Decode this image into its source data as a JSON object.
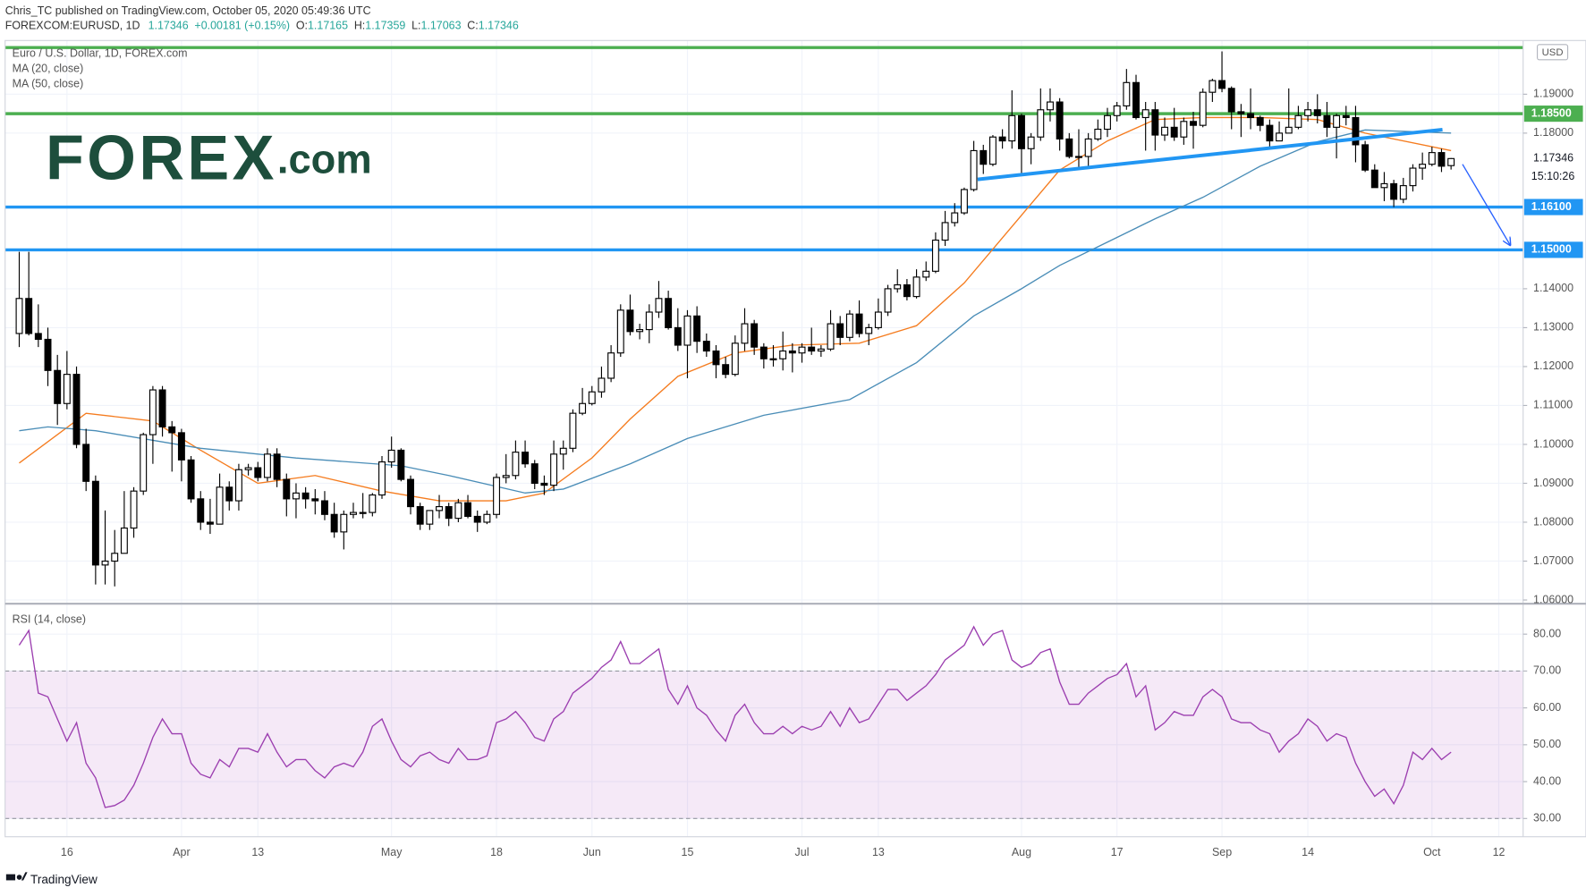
{
  "header": {
    "publisher": "Chris_TC published on TradingView.com, October 05, 2020 05:49:36 UTC",
    "symbol": "FOREXCOM:EURUSD, 1D",
    "last": "1.17346",
    "change": "+0.00181 (+0.15%)",
    "ohlc": [
      {
        "label": "O:",
        "value": "1.17165"
      },
      {
        "label": "H:",
        "value": "1.17359"
      },
      {
        "label": "L:",
        "value": "1.17063"
      },
      {
        "label": "C:",
        "value": "1.17346"
      }
    ]
  },
  "logo": {
    "brand": "FOREX",
    "suffix": ".com"
  },
  "footer": "TradingView",
  "chart_data": [
    {
      "type": "candlestick",
      "title": "Euro / U.S. Dollar, 1D, FOREX.com",
      "currency": "USD",
      "xlim": [
        -1.48,
        157.55
      ],
      "ylim": [
        1.0593,
        1.2038
      ],
      "xticks": [
        {
          "value": 5,
          "label": "16"
        },
        {
          "value": 17,
          "label": "Apr"
        },
        {
          "value": 25,
          "label": "13"
        },
        {
          "value": 39,
          "label": "May"
        },
        {
          "value": 50,
          "label": "18"
        },
        {
          "value": 60,
          "label": "Jun"
        },
        {
          "value": 70,
          "label": "15"
        },
        {
          "value": 82,
          "label": "Jul"
        },
        {
          "value": 90,
          "label": "13"
        },
        {
          "value": 105,
          "label": "Aug"
        },
        {
          "value": 115,
          "label": "17"
        },
        {
          "value": 126,
          "label": "Sep"
        },
        {
          "value": 135,
          "label": "14"
        },
        {
          "value": 148,
          "label": "Oct"
        },
        {
          "value": 155,
          "label": "12"
        }
      ],
      "yticks": [
        {
          "value": 1.19,
          "label": "1.19000"
        },
        {
          "value": 1.18,
          "label": "1.18000"
        },
        {
          "value": 1.14,
          "label": "1.14000"
        },
        {
          "value": 1.13,
          "label": "1.13000"
        },
        {
          "value": 1.12,
          "label": "1.12000"
        },
        {
          "value": 1.11,
          "label": "1.11000"
        },
        {
          "value": 1.1,
          "label": "1.10000"
        },
        {
          "value": 1.09,
          "label": "1.09000"
        },
        {
          "value": 1.08,
          "label": "1.08000"
        },
        {
          "value": 1.07,
          "label": "1.07000"
        },
        {
          "value": 1.06,
          "label": "1.06000"
        }
      ],
      "grid": true,
      "up_color": "#ffffff",
      "down_color": "#000000",
      "open": [
        1.1285,
        1.1375,
        1.1285,
        1.127,
        1.119,
        1.1105,
        1.118,
        1.1,
        1.0905,
        1.069,
        1.07,
        1.072,
        1.0785,
        1.088,
        1.1025,
        1.114,
        1.1045,
        1.103,
        1.096,
        1.086,
        1.08,
        1.0795,
        1.089,
        1.0855,
        1.0935,
        1.094,
        1.0915,
        1.0975,
        1.091,
        1.086,
        1.0875,
        1.086,
        1.0855,
        1.082,
        1.0775,
        1.082,
        1.0825,
        1.0825,
        1.087,
        1.0955,
        1.0985,
        1.091,
        1.084,
        1.0795,
        1.083,
        1.084,
        1.081,
        1.085,
        1.0815,
        1.08,
        1.082,
        1.0915,
        1.092,
        1.098,
        1.095,
        1.09,
        1.0895,
        1.0975,
        1.099,
        1.108,
        1.1105,
        1.1135,
        1.117,
        1.1235,
        1.1345,
        1.129,
        1.1295,
        1.134,
        1.1375,
        1.13,
        1.1255,
        1.133,
        1.1265,
        1.124,
        1.1205,
        1.118,
        1.126,
        1.131,
        1.125,
        1.122,
        1.122,
        1.124,
        1.1235,
        1.125,
        1.124,
        1.1245,
        1.131,
        1.1275,
        1.1335,
        1.1285,
        1.13,
        1.134,
        1.14,
        1.141,
        1.138,
        1.143,
        1.1445,
        1.1525,
        1.157,
        1.1595,
        1.1655,
        1.1755,
        1.172,
        1.179,
        1.178,
        1.1845,
        1.176,
        1.179,
        1.186,
        1.188,
        1.1785,
        1.174,
        1.174,
        1.1785,
        1.181,
        1.1845,
        1.187,
        1.193,
        1.184,
        1.186,
        1.1795,
        1.1815,
        1.179,
        1.183,
        1.182,
        1.1905,
        1.1935,
        1.1915,
        1.1855,
        1.185,
        1.184,
        1.182,
        1.178,
        1.18,
        1.1815,
        1.1845,
        1.186,
        1.1845,
        1.1815,
        1.1845,
        1.184,
        1.177,
        1.1705,
        1.166,
        1.167,
        1.163,
        1.1665,
        1.171,
        1.172,
        1.175,
        1.17165
      ],
      "high": [
        1.1495,
        1.1495,
        1.136,
        1.13,
        1.123,
        1.124,
        1.12,
        1.104,
        1.092,
        1.083,
        1.078,
        1.088,
        1.089,
        1.103,
        1.115,
        1.115,
        1.106,
        1.104,
        1.097,
        1.088,
        1.086,
        1.0925,
        1.0905,
        1.095,
        1.095,
        1.0955,
        1.099,
        1.099,
        1.0925,
        1.09,
        1.089,
        1.0885,
        1.088,
        1.085,
        1.083,
        1.085,
        1.0875,
        1.0875,
        1.097,
        1.102,
        1.099,
        1.092,
        1.085,
        1.083,
        1.087,
        1.085,
        1.086,
        1.087,
        1.083,
        1.083,
        1.0925,
        1.0975,
        1.101,
        1.101,
        1.096,
        1.092,
        1.101,
        1.101,
        1.109,
        1.1145,
        1.115,
        1.12,
        1.1255,
        1.136,
        1.1385,
        1.131,
        1.136,
        1.142,
        1.1395,
        1.135,
        1.1345,
        1.1355,
        1.1285,
        1.1255,
        1.1225,
        1.128,
        1.135,
        1.132,
        1.126,
        1.1255,
        1.129,
        1.126,
        1.126,
        1.13,
        1.1255,
        1.1345,
        1.133,
        1.1345,
        1.137,
        1.131,
        1.1375,
        1.141,
        1.145,
        1.1425,
        1.145,
        1.147,
        1.1545,
        1.16,
        1.162,
        1.166,
        1.178,
        1.177,
        1.1795,
        1.181,
        1.191,
        1.185,
        1.18,
        1.1915,
        1.1915,
        1.189,
        1.18,
        1.181,
        1.18,
        1.1835,
        1.1865,
        1.188,
        1.1965,
        1.195,
        1.188,
        1.188,
        1.184,
        1.1865,
        1.184,
        1.1855,
        1.1915,
        1.194,
        1.201,
        1.192,
        1.1875,
        1.1915,
        1.1845,
        1.1835,
        1.183,
        1.1915,
        1.187,
        1.188,
        1.19,
        1.188,
        1.185,
        1.187,
        1.187,
        1.178,
        1.172,
        1.17,
        1.168,
        1.1685,
        1.172,
        1.175,
        1.1765,
        1.176,
        1.17359
      ],
      "low": [
        1.125,
        1.128,
        1.125,
        1.115,
        1.105,
        1.109,
        1.099,
        1.088,
        1.064,
        1.064,
        1.0635,
        1.072,
        1.076,
        1.087,
        1.095,
        1.102,
        1.093,
        1.0905,
        1.085,
        1.078,
        1.077,
        1.0795,
        1.083,
        1.083,
        1.092,
        1.0905,
        1.0905,
        1.089,
        1.0815,
        1.081,
        1.0835,
        1.082,
        1.0805,
        1.076,
        1.073,
        1.081,
        1.081,
        1.0815,
        1.086,
        1.094,
        1.0905,
        1.082,
        1.078,
        1.078,
        1.081,
        1.079,
        1.08,
        1.081,
        1.0775,
        1.0795,
        1.081,
        1.09,
        1.091,
        1.094,
        1.0885,
        1.087,
        1.088,
        1.0935,
        1.098,
        1.1075,
        1.11,
        1.112,
        1.116,
        1.1225,
        1.128,
        1.127,
        1.126,
        1.1325,
        1.1295,
        1.124,
        1.117,
        1.1235,
        1.1225,
        1.117,
        1.117,
        1.1175,
        1.124,
        1.123,
        1.1195,
        1.12,
        1.119,
        1.1185,
        1.121,
        1.123,
        1.1225,
        1.124,
        1.1255,
        1.1265,
        1.1275,
        1.1255,
        1.1295,
        1.133,
        1.139,
        1.137,
        1.1375,
        1.142,
        1.144,
        1.151,
        1.156,
        1.159,
        1.165,
        1.1695,
        1.1715,
        1.176,
        1.176,
        1.1695,
        1.172,
        1.178,
        1.183,
        1.1755,
        1.1735,
        1.171,
        1.171,
        1.178,
        1.179,
        1.183,
        1.186,
        1.1835,
        1.1755,
        1.1755,
        1.178,
        1.178,
        1.177,
        1.176,
        1.1815,
        1.188,
        1.1905,
        1.181,
        1.179,
        1.181,
        1.1805,
        1.1765,
        1.178,
        1.18,
        1.181,
        1.183,
        1.1825,
        1.179,
        1.1735,
        1.182,
        1.1725,
        1.17,
        1.166,
        1.1625,
        1.161,
        1.162,
        1.165,
        1.168,
        1.1715,
        1.17,
        1.17063
      ],
      "close": [
        1.1375,
        1.1285,
        1.127,
        1.119,
        1.1105,
        1.118,
        1.1,
        1.0905,
        1.069,
        1.07,
        1.072,
        1.0785,
        1.088,
        1.1025,
        1.114,
        1.1045,
        1.103,
        1.096,
        1.086,
        1.08,
        1.0795,
        1.089,
        1.0855,
        1.0935,
        1.094,
        1.0915,
        1.0975,
        1.091,
        1.086,
        1.0875,
        1.086,
        1.0855,
        1.082,
        1.0775,
        1.082,
        1.0825,
        1.0825,
        1.087,
        1.0955,
        1.0985,
        1.091,
        1.084,
        1.0795,
        1.083,
        1.084,
        1.081,
        1.085,
        1.0815,
        1.08,
        1.082,
        1.0915,
        1.092,
        1.098,
        1.095,
        1.09,
        1.0895,
        1.0975,
        1.099,
        1.108,
        1.1105,
        1.1135,
        1.117,
        1.1235,
        1.1345,
        1.129,
        1.1295,
        1.134,
        1.1375,
        1.13,
        1.1255,
        1.133,
        1.1265,
        1.124,
        1.1205,
        1.118,
        1.126,
        1.131,
        1.125,
        1.122,
        1.122,
        1.124,
        1.1235,
        1.125,
        1.124,
        1.1245,
        1.131,
        1.1275,
        1.1335,
        1.1285,
        1.13,
        1.134,
        1.14,
        1.141,
        1.138,
        1.143,
        1.1445,
        1.1525,
        1.157,
        1.1595,
        1.1655,
        1.1755,
        1.172,
        1.179,
        1.178,
        1.1845,
        1.176,
        1.179,
        1.186,
        1.188,
        1.1785,
        1.174,
        1.174,
        1.1785,
        1.181,
        1.1845,
        1.187,
        1.193,
        1.184,
        1.186,
        1.1795,
        1.1815,
        1.179,
        1.183,
        1.182,
        1.1905,
        1.1935,
        1.1915,
        1.1855,
        1.185,
        1.184,
        1.182,
        1.178,
        1.18,
        1.1815,
        1.1845,
        1.186,
        1.1845,
        1.1815,
        1.1845,
        1.184,
        1.177,
        1.1705,
        1.166,
        1.167,
        1.163,
        1.1665,
        1.171,
        1.172,
        1.175,
        1.1715,
        1.17346
      ],
      "series": [
        {
          "name": "MA (20, close)",
          "color": "#f57c1f",
          "x": [
            0,
            7,
            14,
            19,
            25,
            31,
            38,
            44,
            51,
            55,
            60,
            64,
            69,
            75,
            81,
            88,
            94,
            99,
            104,
            109,
            114,
            119,
            124,
            130,
            136,
            141,
            150
          ],
          "values": [
            1.0952,
            1.108,
            1.106,
            1.0985,
            1.09,
            1.092,
            1.088,
            1.0855,
            1.0855,
            1.0875,
            1.0965,
            1.1065,
            1.1175,
            1.1235,
            1.1255,
            1.126,
            1.1305,
            1.1415,
            1.156,
            1.1705,
            1.178,
            1.1835,
            1.184,
            1.184,
            1.1835,
            1.18,
            1.1755
          ]
        },
        {
          "name": "MA (50, close)",
          "color": "#4a8db7",
          "x": [
            0,
            3,
            8,
            19,
            29,
            40,
            45,
            53,
            57,
            64,
            70,
            78,
            87,
            94,
            100,
            105,
            109,
            114,
            119,
            124,
            130,
            136,
            141,
            150
          ],
          "values": [
            1.1035,
            1.1045,
            1.1035,
            1.099,
            1.0965,
            1.0945,
            1.092,
            1.0875,
            1.0885,
            1.095,
            1.1015,
            1.1075,
            1.1115,
            1.121,
            1.133,
            1.14,
            1.146,
            1.152,
            1.158,
            1.1635,
            1.1715,
            1.1778,
            1.1808,
            1.18
          ]
        }
      ],
      "levels": [
        {
          "value": 1.202,
          "color": "#4caf50"
        },
        {
          "value": 1.185,
          "label": "1.18500",
          "color": "#4caf50"
        },
        {
          "value": 1.161,
          "label": "1.16100",
          "color": "#2196f3"
        },
        {
          "value": 1.15,
          "label": "1.15000",
          "color": "#2196f3"
        }
      ],
      "trendline": {
        "x": [
          100.4,
          149.1
        ],
        "values": [
          1.1681,
          1.1809
        ],
        "color": "#2196f3"
      },
      "arrow": {
        "x": [
          151.2,
          156.2
        ],
        "values": [
          1.172,
          1.1512
        ],
        "color": "#2962ff"
      },
      "last_price": {
        "value": 1.17346,
        "label": "1.17346",
        "countdown": "15:10:26"
      }
    },
    {
      "type": "line",
      "title": "RSI (14, close)",
      "color": "#9c3fb0",
      "xlim": [
        -1.48,
        157.55
      ],
      "ylim": [
        25.05,
        87.97
      ],
      "yticks": [
        {
          "value": 80,
          "label": "80.00"
        },
        {
          "value": 70,
          "label": "70.00"
        },
        {
          "value": 60,
          "label": "60.00"
        },
        {
          "value": 50,
          "label": "50.00"
        },
        {
          "value": 40,
          "label": "40.00"
        },
        {
          "value": 30,
          "label": "30.00"
        }
      ],
      "band": [
        30,
        70
      ],
      "band_color": "#9c27b0",
      "values": [
        77,
        81,
        64,
        63,
        57,
        51,
        56,
        45,
        41,
        33,
        33.5,
        35,
        39,
        45,
        52,
        57,
        53,
        53,
        45,
        42,
        41,
        46,
        44,
        49,
        49,
        48,
        53,
        48,
        44,
        46,
        46,
        43,
        41,
        44,
        45,
        44,
        48,
        55,
        57,
        51,
        46,
        44,
        47,
        48,
        46,
        45,
        49,
        46,
        46,
        47,
        56,
        57,
        59,
        56,
        52,
        51,
        57,
        59,
        64,
        66,
        68,
        71,
        73,
        78,
        72,
        72,
        74,
        76,
        65,
        61,
        66,
        60,
        58,
        54,
        51,
        58,
        61,
        56,
        53,
        53,
        55,
        53,
        55,
        54,
        55,
        59,
        55,
        60,
        56,
        57,
        61,
        65,
        65,
        62,
        64,
        66,
        69,
        73,
        75,
        77,
        82,
        77,
        80,
        81,
        73,
        71,
        72,
        75,
        76,
        67,
        61,
        61,
        64,
        66,
        68,
        69,
        72,
        63,
        66,
        54,
        56,
        59,
        58,
        58,
        63,
        65,
        63,
        57,
        56,
        56,
        54,
        53,
        48,
        51,
        53,
        57,
        55,
        51,
        53,
        52,
        45,
        40,
        36,
        38,
        34,
        39,
        48,
        46,
        49,
        46,
        48
      ]
    }
  ]
}
